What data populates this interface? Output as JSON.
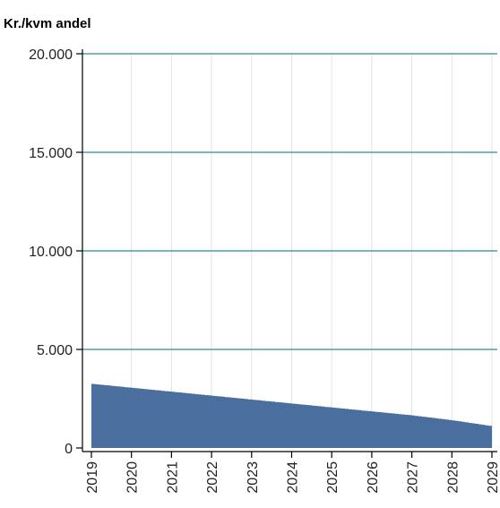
{
  "chart_data": {
    "type": "area",
    "title": "",
    "ylabel": "Kr./kvm andel",
    "xlabel": "",
    "x_ticks": [
      "2019",
      "2020",
      "2021",
      "2022",
      "2023",
      "2024",
      "2025",
      "2026",
      "2027",
      "2028",
      "2029"
    ],
    "y_ticks": [
      "0",
      "5.000",
      "10.000",
      "15.000",
      "20.000"
    ],
    "y_tick_values": [
      0,
      5000,
      10000,
      15000,
      20000
    ],
    "ylim": [
      0,
      20000
    ],
    "xlim": [
      2019,
      2029
    ],
    "series": [
      {
        "x": [
          2019,
          2020,
          2021,
          2022,
          2023,
          2024,
          2025,
          2026,
          2027,
          2028,
          2029
        ],
        "values": [
          3250,
          3050,
          2850,
          2650,
          2450,
          2250,
          2050,
          1850,
          1650,
          1400,
          1100
        ],
        "color": "#4a6f9f"
      }
    ],
    "grid": {
      "horizontal_color": "#2a8f8f",
      "vertical_color": "#e3e3e3"
    },
    "legend": "none"
  }
}
